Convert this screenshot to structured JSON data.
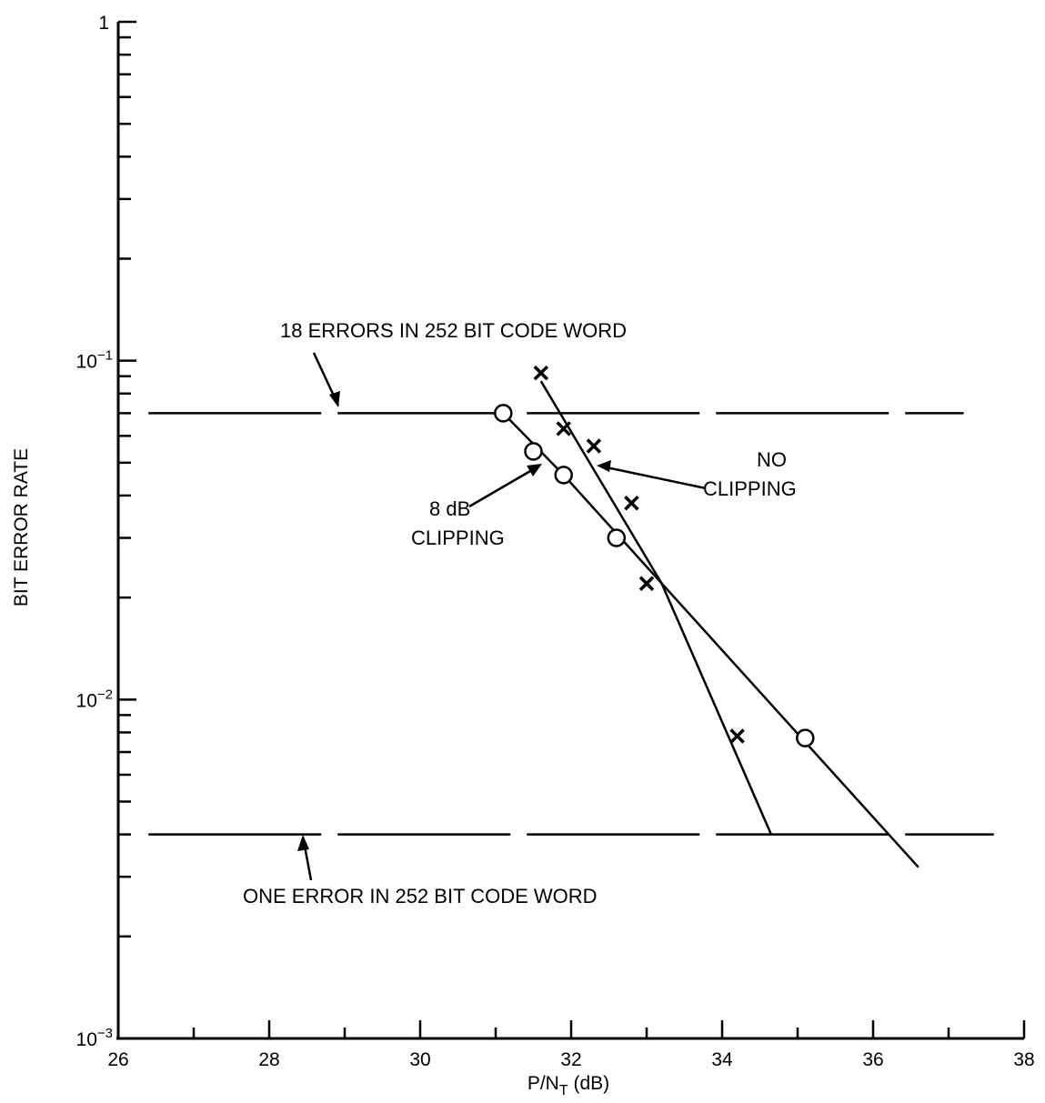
{
  "chart_data": {
    "type": "scatter",
    "title": "",
    "xlabel": "P/N",
    "xlabel_sub": "T",
    "xlabel_unit": " (dB)",
    "ylabel": "BIT ERROR RATE",
    "xlim": [
      26,
      38
    ],
    "ylim": [
      0.001,
      1
    ],
    "yscale": "log",
    "grid": false,
    "x_ticks": [
      {
        "value": 26,
        "label": "26"
      },
      {
        "value": 28,
        "label": "28"
      },
      {
        "value": 30,
        "label": "30"
      },
      {
        "value": 32,
        "label": "32"
      },
      {
        "value": 34,
        "label": "34"
      },
      {
        "value": 36,
        "label": "36"
      },
      {
        "value": 38,
        "label": "38"
      }
    ],
    "y_ticks": [
      {
        "value": 0.001,
        "base": "10",
        "exp": "−3"
      },
      {
        "value": 0.01,
        "base": "10",
        "exp": "−2"
      },
      {
        "value": 0.1,
        "base": "10",
        "exp": "−1"
      },
      {
        "value": 1,
        "base": "1",
        "exp": ""
      }
    ],
    "series": [
      {
        "marker": "o",
        "points": [
          {
            "x": 31.1,
            "y": 0.07
          },
          {
            "x": 31.5,
            "y": 0.054
          },
          {
            "x": 31.9,
            "y": 0.046
          },
          {
            "x": 32.6,
            "y": 0.03
          },
          {
            "x": 35.1,
            "y": 0.0077
          }
        ],
        "fit": [
          {
            "x": 31.1,
            "y": 0.07
          },
          {
            "x": 31.9,
            "y": 0.046
          },
          {
            "x": 36.6,
            "y": 0.0032
          }
        ]
      },
      {
        "marker": "x",
        "points": [
          {
            "x": 31.6,
            "y": 0.092
          },
          {
            "x": 31.9,
            "y": 0.063
          },
          {
            "x": 32.3,
            "y": 0.056
          },
          {
            "x": 32.8,
            "y": 0.038
          },
          {
            "x": 33.0,
            "y": 0.022
          },
          {
            "x": 34.2,
            "y": 0.0078
          }
        ],
        "fit": [
          {
            "x": 31.6,
            "y": 0.087
          },
          {
            "x": 33.2,
            "y": 0.022
          },
          {
            "x": 34.65,
            "y": 0.004
          }
        ]
      }
    ],
    "reference_lines": [
      {
        "y": 0.07,
        "x_from": 26.4,
        "x_to": 37.2
      },
      {
        "y": 0.004,
        "x_from": 26.4,
        "x_to": 37.6
      }
    ],
    "annotations": {
      "top_ref": "18 ERRORS IN 252 BIT CODE WORD",
      "bottom_ref": "ONE ERROR IN 252 BIT CODE WORD",
      "clip_line1": "8 dB",
      "clip_line2": "CLIPPING",
      "noclip_line1": "NO",
      "noclip_line2": "CLIPPING"
    }
  }
}
